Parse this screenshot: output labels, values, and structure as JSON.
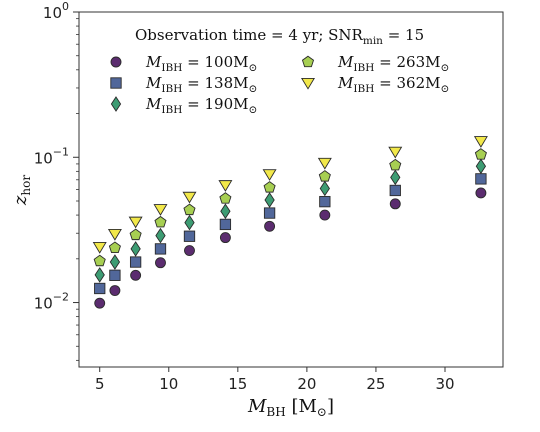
{
  "chart_data": {
    "type": "scatter",
    "title": "Observation time = 4 yr; SNR_min = 15",
    "title_parts": {
      "prefix": "Observation time = 4 yr; SNR",
      "sub": "min",
      "suffix": " = 15"
    },
    "xlabel": {
      "main": "M",
      "sub": "BH",
      "unit": " [M",
      "unit_sub": "⊙",
      "close": "]"
    },
    "ylabel": {
      "main": "z",
      "sub": "hor"
    },
    "xlim": [
      3.5,
      34.2
    ],
    "ylim": [
      0.0036,
      1.0
    ],
    "yscale": "log",
    "xticks": [
      5,
      10,
      15,
      20,
      25,
      30
    ],
    "xtick_labels": [
      "5",
      "10",
      "15",
      "20",
      "25",
      "30"
    ],
    "yticks": [
      0.01,
      0.1,
      1
    ],
    "ytick_labels": [
      {
        "base": "10",
        "exp": "−2"
      },
      {
        "base": "10",
        "exp": "−1"
      },
      {
        "base": "10",
        "exp": "0"
      }
    ],
    "grid": false,
    "legend_location": "top",
    "x": [
      5.0,
      6.1,
      7.6,
      9.4,
      11.5,
      14.1,
      17.3,
      21.3,
      26.4,
      32.6
    ],
    "series": [
      {
        "name": "M_IBH = 100M_⊙",
        "label_main": "M",
        "label_sub": "IBH",
        "label_value": " = 100M",
        "label_unit_sub": "⊙",
        "marker": "circle",
        "color": "#5b2c6f",
        "values": [
          0.0099,
          0.0121,
          0.0154,
          0.0188,
          0.0228,
          0.028,
          0.0335,
          0.04,
          0.0478,
          0.0568
        ]
      },
      {
        "name": "M_IBH = 138M_⊙",
        "label_main": "M",
        "label_sub": "IBH",
        "label_value": " = 138M",
        "label_unit_sub": "⊙",
        "marker": "square",
        "color": "#51679a",
        "values": [
          0.0125,
          0.0154,
          0.019,
          0.0234,
          0.0286,
          0.0345,
          0.0413,
          0.0495,
          0.0591,
          0.071
        ]
      },
      {
        "name": "M_IBH = 190M_⊙",
        "label_main": "M",
        "label_sub": "IBH",
        "label_value": " = 190M",
        "label_unit_sub": "⊙",
        "marker": "diamond",
        "color": "#3d9c73",
        "values": [
          0.0155,
          0.019,
          0.0234,
          0.0289,
          0.0355,
          0.0425,
          0.0508,
          0.061,
          0.0727,
          0.0867
        ]
      },
      {
        "name": "M_IBH = 263M_⊙",
        "label_main": "M",
        "label_sub": "IBH",
        "label_value": " = 263M",
        "label_unit_sub": "⊙",
        "marker": "pentagon",
        "color": "#a7cf52",
        "values": [
          0.0193,
          0.0238,
          0.0292,
          0.0357,
          0.0434,
          0.052,
          0.062,
          0.0738,
          0.0882,
          0.1045
        ]
      },
      {
        "name": "M_IBH = 362M_⊙",
        "label_main": "M",
        "label_sub": "IBH",
        "label_value": " = 362M",
        "label_unit_sub": "⊙",
        "marker": "triangle-down",
        "color": "#f2e84a",
        "values": [
          0.0241,
          0.0296,
          0.036,
          0.0439,
          0.0534,
          0.0642,
          0.0764,
          0.0914,
          0.109,
          0.129
        ]
      }
    ]
  }
}
